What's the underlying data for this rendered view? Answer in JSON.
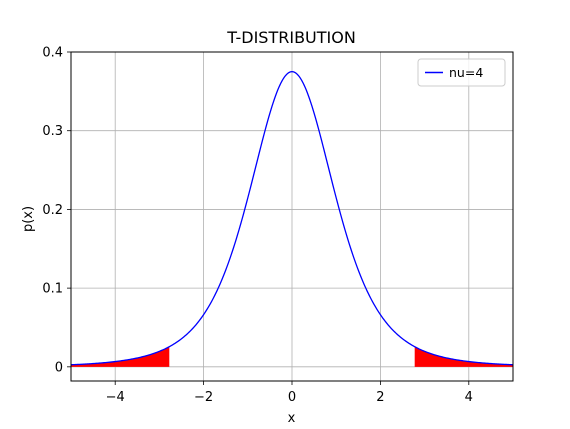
{
  "chart_data": {
    "type": "line",
    "title": "T-DISTRIBUTION",
    "xlabel": "x",
    "ylabel": "p(x)",
    "xlim": [
      -5,
      5
    ],
    "ylim": [
      -0.018,
      0.4
    ],
    "x_ticks": [
      -4,
      -2,
      0,
      2,
      4
    ],
    "x_tick_labels": [
      "−4",
      "−2",
      "0",
      "2",
      "4"
    ],
    "y_ticks": [
      0,
      0.1,
      0.2,
      0.3,
      0.4
    ],
    "y_tick_labels": [
      "0",
      "0.1",
      "0.2",
      "0.3",
      "0.4"
    ],
    "grid": true,
    "legend_position": "top-right",
    "series": [
      {
        "name": "nu=4",
        "color": "#0000ff",
        "distribution": "student-t",
        "degrees_of_freedom": 4,
        "x": [
          -5,
          -4.5,
          -4,
          -3.5,
          -3,
          -2.776,
          -2.5,
          -2,
          -1.5,
          -1,
          -0.5,
          0,
          0.5,
          1,
          1.5,
          2,
          2.5,
          2.776,
          3,
          3.5,
          4,
          4.5,
          5
        ],
        "y": [
          0.0042,
          0.0063,
          0.0067,
          0.0114,
          0.0197,
          0.0252,
          0.0324,
          0.0663,
          0.1224,
          0.2147,
          0.3229,
          0.375,
          0.3229,
          0.2147,
          0.1224,
          0.0663,
          0.0324,
          0.0252,
          0.0197,
          0.0114,
          0.0067,
          0.0063,
          0.0042
        ]
      }
    ],
    "shaded_regions": [
      {
        "from": -5,
        "to": -2.776,
        "color": "#ff0000"
      },
      {
        "from": 2.776,
        "to": 5,
        "color": "#ff0000"
      }
    ]
  }
}
